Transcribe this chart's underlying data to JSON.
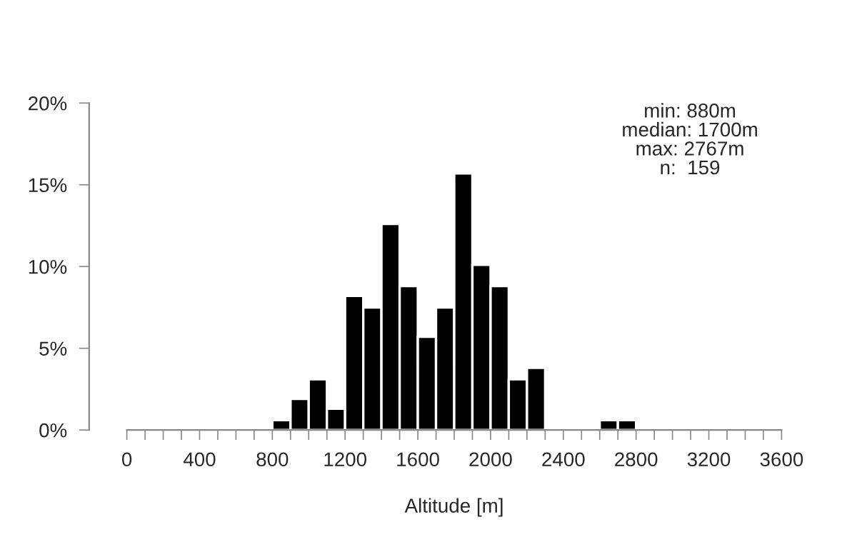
{
  "chart_data": {
    "type": "histogram",
    "xlabel": "Altitude [m]",
    "bins": [
      800,
      900,
      1000,
      1100,
      1200,
      1300,
      1400,
      1500,
      1600,
      1700,
      1800,
      1900,
      2000,
      2100,
      2200,
      2300,
      2400,
      2500,
      2600,
      2700,
      2800
    ],
    "values": [
      0.6,
      1.9,
      3.1,
      1.3,
      8.2,
      7.5,
      12.6,
      8.8,
      5.7,
      7.5,
      15.7,
      10.1,
      8.8,
      3.1,
      3.8,
      0,
      0,
      0,
      0.6,
      0.6
    ],
    "color": "#000000",
    "xlim": [
      0,
      3600
    ],
    "xticks": [
      0,
      {
        "value": 100,
        "label": null
      },
      {
        "value": 200,
        "label": null
      },
      {
        "value": 300,
        "label": null
      },
      400,
      {
        "value": 500,
        "label": null
      },
      {
        "value": 600,
        "label": null
      },
      {
        "value": 700,
        "label": null
      },
      800,
      {
        "value": 900,
        "label": null
      },
      {
        "value": 1000,
        "label": null
      },
      {
        "value": 1100,
        "label": null
      },
      1200,
      {
        "value": 1300,
        "label": null
      },
      {
        "value": 1400,
        "label": null
      },
      {
        "value": 1500,
        "label": null
      },
      1600,
      {
        "value": 1700,
        "label": null
      },
      {
        "value": 1800,
        "label": null
      },
      {
        "value": 1900,
        "label": null
      },
      2000,
      {
        "value": 2100,
        "label": null
      },
      {
        "value": 2200,
        "label": null
      },
      {
        "value": 2300,
        "label": null
      },
      2400,
      {
        "value": 2500,
        "label": null
      },
      {
        "value": 2600,
        "label": null
      },
      {
        "value": 2700,
        "label": null
      },
      2800,
      {
        "value": 2900,
        "label": null
      },
      {
        "value": 3000,
        "label": null
      },
      {
        "value": 3100,
        "label": null
      },
      3200,
      {
        "value": 3300,
        "label": null
      },
      {
        "value": 3400,
        "label": null
      },
      {
        "value": 3500,
        "label": null
      },
      3600
    ],
    "ylim": [
      0,
      20
    ],
    "yticks": [
      {
        "value": 0,
        "label": "0%"
      },
      {
        "value": 5,
        "label": "5%"
      },
      {
        "value": 10,
        "label": "10%"
      },
      {
        "value": 15,
        "label": "15%"
      },
      {
        "value": 20,
        "label": "20%"
      }
    ],
    "grid": false,
    "legend": false,
    "annotations": [
      "min: 880m",
      "median: 1700m",
      "max: 2767m",
      "n:  159"
    ]
  }
}
